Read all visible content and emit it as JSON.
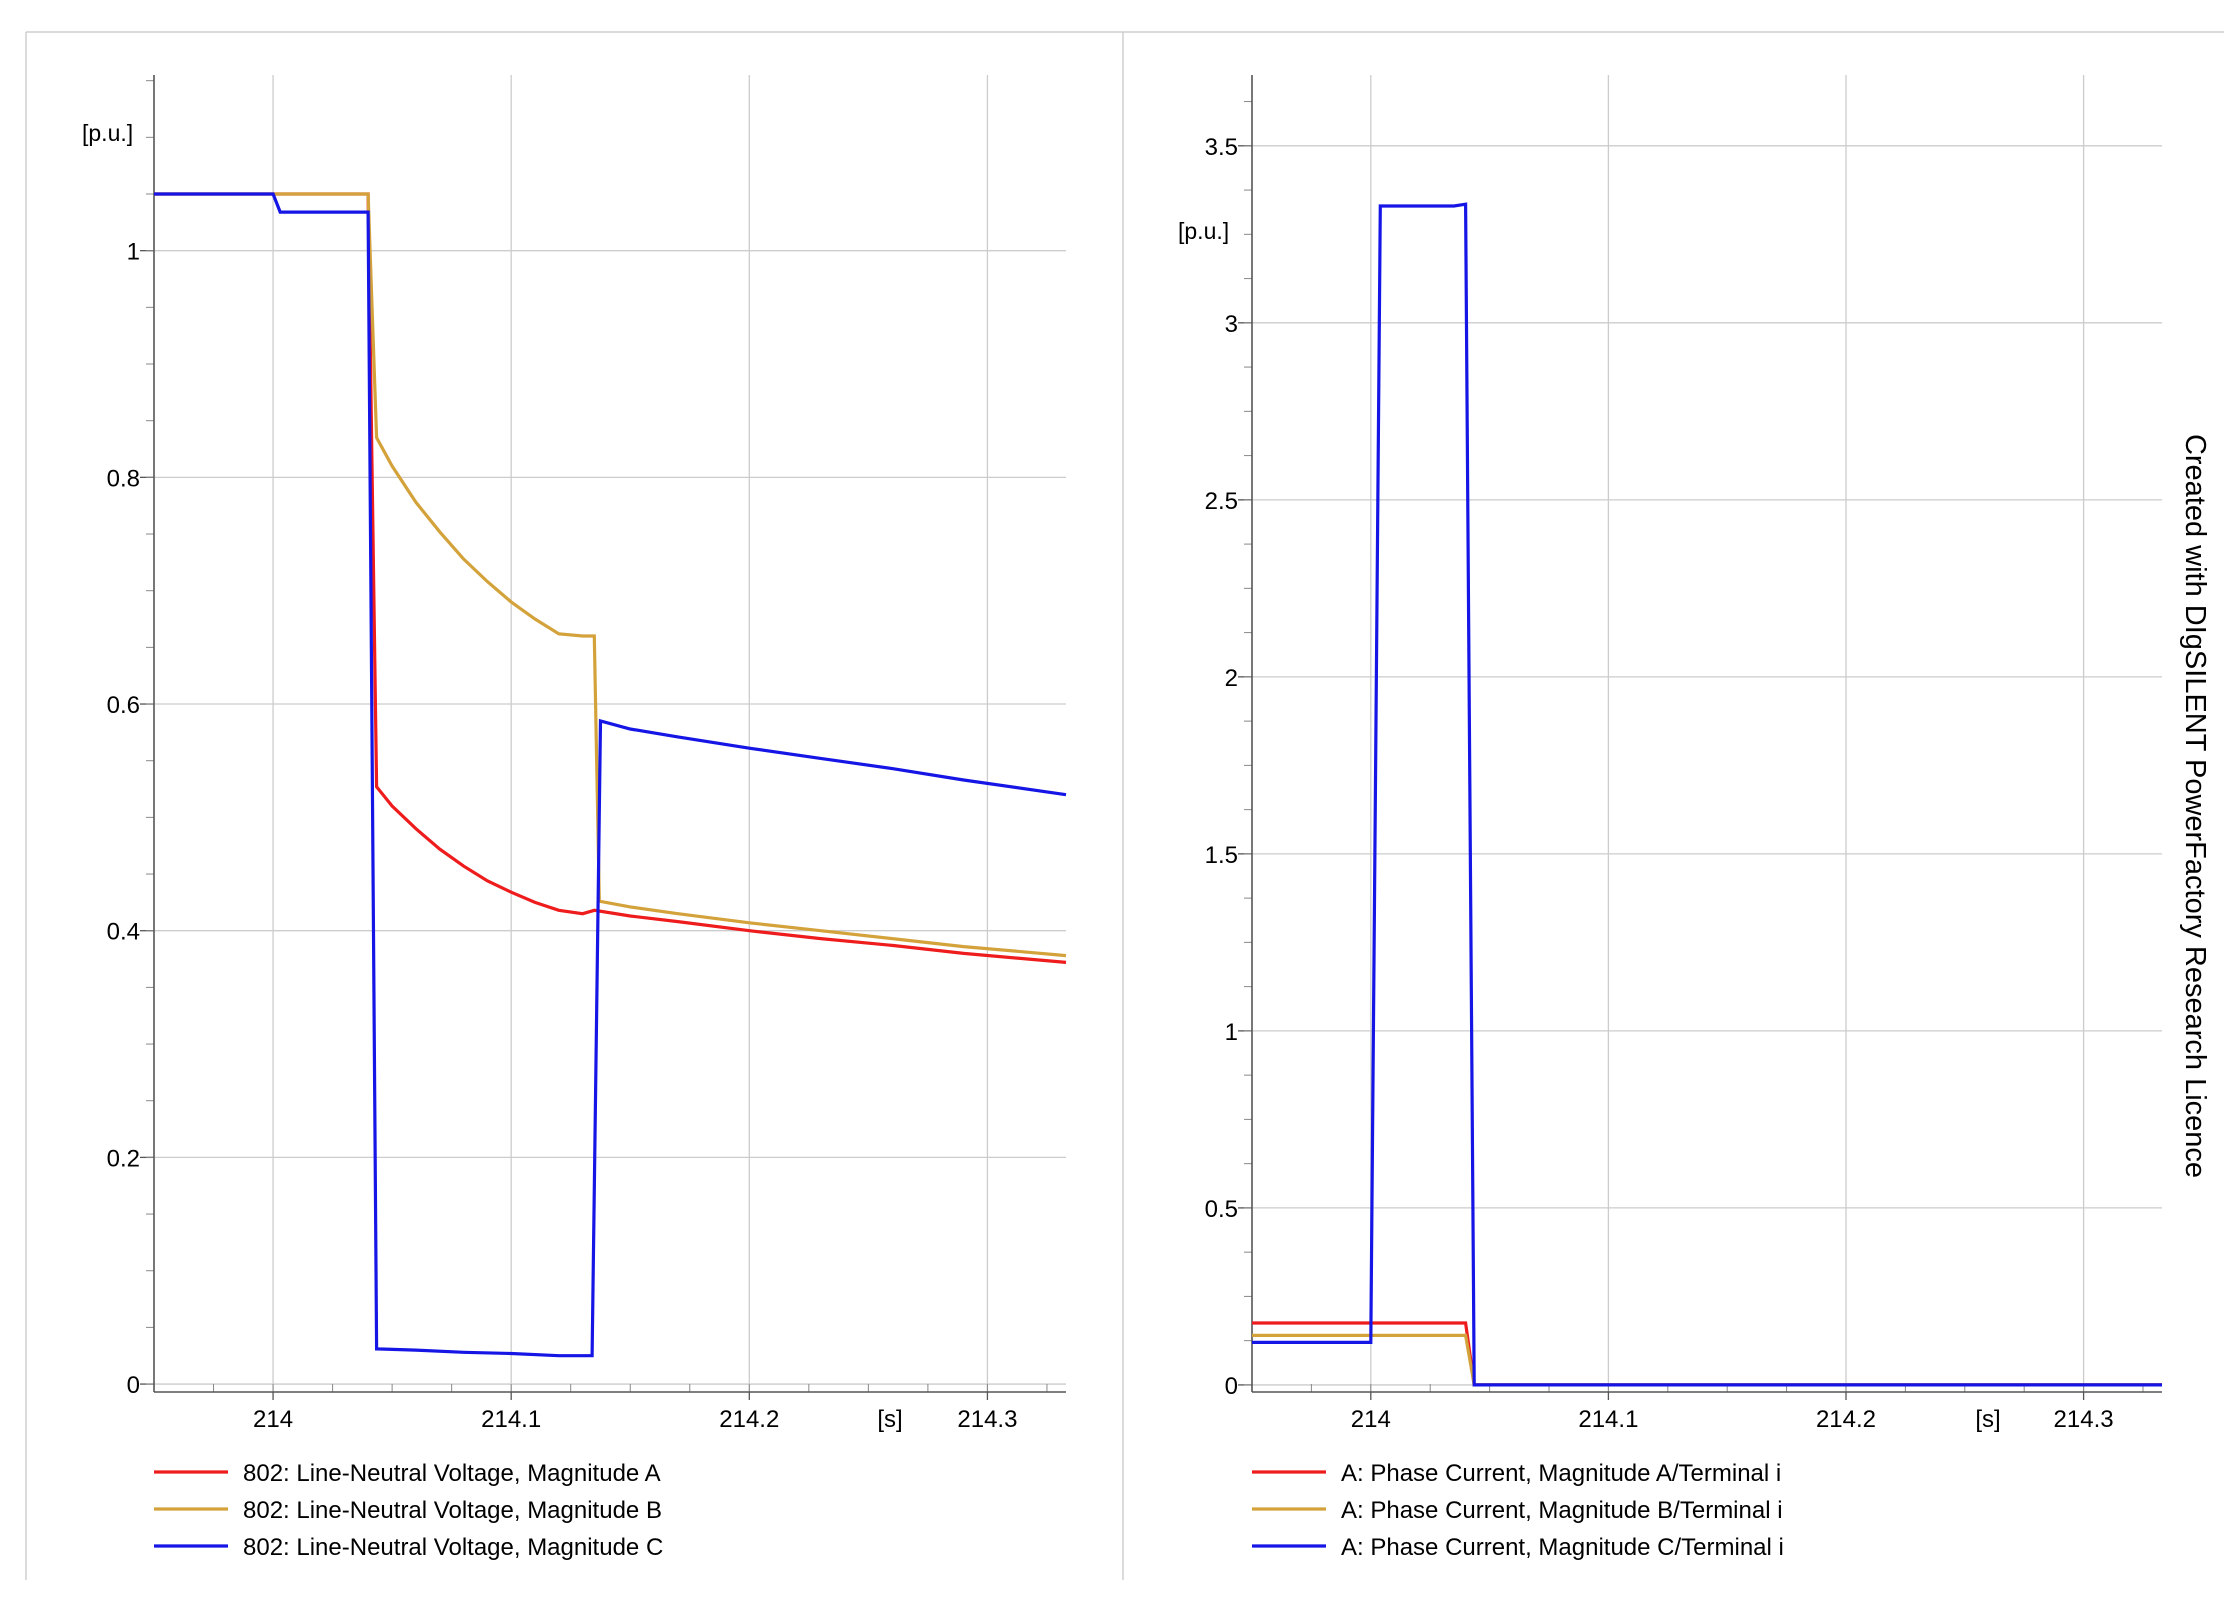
{
  "watermark": "Created with DIgSILENT PowerFactory Research Licence",
  "chart_data": [
    {
      "type": "line",
      "title": "",
      "xlabel": "",
      "ylabel": "",
      "x_unit": "[s]",
      "y_unit": "[p.u.]",
      "xlim": [
        213.95,
        214.333
      ],
      "ylim": [
        -0.007,
        1.155
      ],
      "x_ticks": [
        "214",
        "214.1",
        "214.2",
        "214.3"
      ],
      "x_tick_values": [
        214,
        214.1,
        214.2,
        214.3
      ],
      "y_ticks": [
        "0",
        "0.2",
        "0.4",
        "0.6",
        "0.8",
        "1"
      ],
      "y_tick_values": [
        0,
        0.2,
        0.4,
        0.6,
        0.8,
        1
      ],
      "grid": true,
      "legend_position": "bottom",
      "colors": {
        "red": "#ee1c1c",
        "gold": "#d4a23a",
        "blue": "#1515e6"
      },
      "series": [
        {
          "name": "802: Line-Neutral Voltage, Magnitude A",
          "color": "#ee1c1c",
          "x": [
            213.95,
            214.0,
            214.0399,
            214.0435,
            214.05,
            214.06,
            214.07,
            214.08,
            214.09,
            214.1,
            214.11,
            214.12,
            214.13,
            214.135,
            214.15,
            214.17,
            214.2,
            214.23,
            214.26,
            214.29,
            214.333
          ],
          "y": [
            1.05,
            1.05,
            1.05,
            0.527,
            0.51,
            0.49,
            0.472,
            0.457,
            0.444,
            0.434,
            0.425,
            0.418,
            0.415,
            0.418,
            0.413,
            0.408,
            0.4,
            0.393,
            0.387,
            0.38,
            0.372
          ]
        },
        {
          "name": "802: Line-Neutral Voltage, Magnitude B",
          "color": "#d4a23a",
          "x": [
            213.95,
            214.0,
            214.0399,
            214.0435,
            214.05,
            214.06,
            214.07,
            214.08,
            214.09,
            214.1,
            214.11,
            214.12,
            214.13,
            214.1349,
            214.137,
            214.15,
            214.17,
            214.2,
            214.23,
            214.26,
            214.29,
            214.333
          ],
          "y": [
            1.05,
            1.05,
            1.05,
            0.835,
            0.81,
            0.778,
            0.752,
            0.728,
            0.708,
            0.69,
            0.675,
            0.662,
            0.66,
            0.66,
            0.426,
            0.421,
            0.415,
            0.407,
            0.4,
            0.393,
            0.386,
            0.378
          ]
        },
        {
          "name": "802: Line-Neutral Voltage, Magnitude C",
          "color": "#1515e6",
          "x": [
            213.95,
            214.0,
            214.003,
            214.0399,
            214.0435,
            214.06,
            214.08,
            214.1,
            214.12,
            214.134,
            214.1375,
            214.15,
            214.17,
            214.2,
            214.23,
            214.26,
            214.29,
            214.333
          ],
          "y": [
            1.05,
            1.05,
            1.034,
            1.034,
            0.031,
            0.03,
            0.028,
            0.027,
            0.025,
            0.025,
            0.585,
            0.578,
            0.571,
            0.561,
            0.552,
            0.543,
            0.533,
            0.52
          ]
        }
      ]
    },
    {
      "type": "line",
      "title": "",
      "xlabel": "",
      "ylabel": "",
      "x_unit": "[s]",
      "y_unit": "[p.u.]",
      "xlim": [
        213.95,
        214.333
      ],
      "ylim": [
        -0.02,
        3.7
      ],
      "x_ticks": [
        "214",
        "214.1",
        "214.2",
        "214.3"
      ],
      "x_tick_values": [
        214,
        214.1,
        214.2,
        214.3
      ],
      "y_ticks": [
        "0",
        "0.5",
        "1",
        "1.5",
        "2",
        "2.5",
        "3",
        "3.5"
      ],
      "y_tick_values": [
        0,
        0.5,
        1,
        1.5,
        2,
        2.5,
        3,
        3.5
      ],
      "grid": true,
      "legend_position": "bottom",
      "colors": {
        "red": "#ee1c1c",
        "gold": "#d4a23a",
        "blue": "#1515e6"
      },
      "series": [
        {
          "name": "A: Phase Current, Magnitude A/Terminal i",
          "color": "#ee1c1c",
          "x": [
            213.95,
            214.0399,
            214.0435,
            214.333
          ],
          "y": [
            0.175,
            0.175,
            0.0,
            0.0
          ]
        },
        {
          "name": "A: Phase Current, Magnitude B/Terminal i",
          "color": "#d4a23a",
          "x": [
            213.95,
            214.0399,
            214.0435,
            214.333
          ],
          "y": [
            0.14,
            0.14,
            0.0,
            0.0
          ]
        },
        {
          "name": "A: Phase Current, Magnitude C/Terminal i",
          "color": "#1515e6",
          "x": [
            213.95,
            214.0,
            214.004,
            214.035,
            214.0399,
            214.0435,
            214.333
          ],
          "y": [
            0.12,
            0.12,
            3.33,
            3.33,
            3.335,
            0.0,
            0.0
          ]
        }
      ]
    }
  ]
}
